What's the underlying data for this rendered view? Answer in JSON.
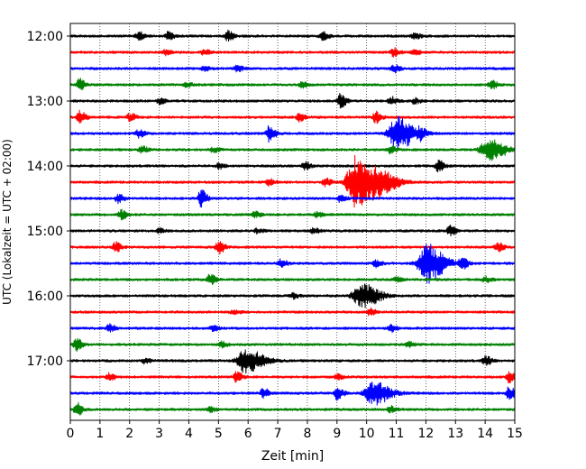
{
  "chart_data": {
    "type": "line",
    "title": "",
    "xlabel": "Zeit  [min]",
    "ylabel": "UTC (Lokalzeit = UTC + 02:00)",
    "xlim": [
      0,
      15
    ],
    "xticks": [
      "0",
      "1",
      "2",
      "3",
      "4",
      "5",
      "6",
      "7",
      "8",
      "9",
      "10",
      "11",
      "12",
      "13",
      "14",
      "15"
    ],
    "yticks": [
      "12:00",
      "13:00",
      "14:00",
      "15:00",
      "16:00",
      "17:00"
    ],
    "grid": "vertical dotted",
    "trace_interval_minutes": 15,
    "start_time": "12:00",
    "color_cycle": [
      "#000000",
      "#ff0000",
      "#0000ff",
      "#008000"
    ],
    "series": [
      {
        "time": "12:00",
        "color": "#000000",
        "events": [
          [
            2.3,
            0.5
          ],
          [
            3.3,
            0.5
          ],
          [
            5.3,
            0.6
          ],
          [
            8.5,
            0.5
          ],
          [
            11.6,
            0.4
          ]
        ]
      },
      {
        "time": "12:15",
        "color": "#ff0000",
        "events": [
          [
            3.2,
            0.3
          ],
          [
            4.5,
            0.3
          ],
          [
            10.9,
            0.5
          ],
          [
            11.6,
            0.3
          ]
        ]
      },
      {
        "time": "12:30",
        "color": "#0000ff",
        "events": [
          [
            4.5,
            0.3
          ],
          [
            5.6,
            0.4
          ],
          [
            10.9,
            0.5
          ]
        ]
      },
      {
        "time": "12:45",
        "color": "#008000",
        "events": [
          [
            0.3,
            0.7
          ],
          [
            3.9,
            0.3
          ],
          [
            7.8,
            0.3
          ],
          [
            14.2,
            0.5
          ]
        ]
      },
      {
        "time": "13:00",
        "color": "#000000",
        "events": [
          [
            3.0,
            0.3
          ],
          [
            9.1,
            0.9
          ],
          [
            10.8,
            0.5
          ],
          [
            11.6,
            0.3
          ]
        ]
      },
      {
        "time": "13:15",
        "color": "#ff0000",
        "events": [
          [
            0.3,
            0.8
          ],
          [
            2.0,
            0.5
          ],
          [
            7.7,
            0.5
          ],
          [
            10.3,
            0.7
          ]
        ]
      },
      {
        "time": "13:30",
        "color": "#0000ff",
        "events": [
          [
            2.3,
            0.5
          ],
          [
            6.7,
            1.1
          ],
          [
            11.0,
            2.0
          ],
          [
            11.8,
            0.5
          ]
        ]
      },
      {
        "time": "13:45",
        "color": "#008000",
        "events": [
          [
            2.4,
            0.4
          ],
          [
            4.8,
            0.3
          ],
          [
            10.8,
            0.4
          ],
          [
            14.1,
            1.3
          ]
        ]
      },
      {
        "time": "14:00",
        "color": "#000000",
        "events": [
          [
            5.0,
            0.3
          ],
          [
            7.9,
            0.5
          ],
          [
            12.4,
            0.7
          ]
        ]
      },
      {
        "time": "14:15",
        "color": "#ff0000",
        "events": [
          [
            6.7,
            0.4
          ],
          [
            8.6,
            0.5
          ],
          [
            9.6,
            3.2
          ],
          [
            10.4,
            1.4
          ]
        ]
      },
      {
        "time": "14:30",
        "color": "#0000ff",
        "events": [
          [
            1.6,
            0.5
          ],
          [
            4.4,
            1.1
          ],
          [
            9.1,
            0.4
          ]
        ]
      },
      {
        "time": "14:45",
        "color": "#008000",
        "events": [
          [
            1.7,
            0.6
          ],
          [
            6.2,
            0.4
          ],
          [
            8.3,
            0.3
          ]
        ]
      },
      {
        "time": "15:00",
        "color": "#000000",
        "events": [
          [
            3.0,
            0.3
          ],
          [
            6.3,
            0.3
          ],
          [
            8.2,
            0.3
          ],
          [
            12.8,
            0.6
          ]
        ]
      },
      {
        "time": "15:15",
        "color": "#ff0000",
        "events": [
          [
            1.5,
            0.6
          ],
          [
            5.0,
            0.8
          ],
          [
            14.4,
            0.6
          ]
        ]
      },
      {
        "time": "15:30",
        "color": "#0000ff",
        "events": [
          [
            7.1,
            0.5
          ],
          [
            10.3,
            0.4
          ],
          [
            12.0,
            2.4
          ],
          [
            13.2,
            0.7
          ]
        ]
      },
      {
        "time": "15:45",
        "color": "#008000",
        "events": [
          [
            4.7,
            0.6
          ],
          [
            11.0,
            0.3
          ],
          [
            14.0,
            0.3
          ]
        ]
      },
      {
        "time": "16:00",
        "color": "#000000",
        "events": [
          [
            7.5,
            0.3
          ],
          [
            9.8,
            1.5
          ]
        ]
      },
      {
        "time": "16:15",
        "color": "#ff0000",
        "events": [
          [
            5.5,
            0.3
          ],
          [
            10.1,
            0.4
          ]
        ]
      },
      {
        "time": "16:30",
        "color": "#0000ff",
        "events": [
          [
            1.3,
            0.5
          ],
          [
            4.8,
            0.3
          ],
          [
            10.8,
            0.5
          ]
        ]
      },
      {
        "time": "16:45",
        "color": "#008000",
        "events": [
          [
            0.2,
            0.7
          ],
          [
            5.1,
            0.3
          ],
          [
            11.4,
            0.3
          ]
        ]
      },
      {
        "time": "17:00",
        "color": "#000000",
        "events": [
          [
            2.5,
            0.3
          ],
          [
            5.9,
            1.5
          ],
          [
            14.0,
            0.6
          ]
        ]
      },
      {
        "time": "17:15",
        "color": "#ff0000",
        "events": [
          [
            1.3,
            0.4
          ],
          [
            5.6,
            0.6
          ],
          [
            9.0,
            0.3
          ],
          [
            14.8,
            0.6
          ]
        ]
      },
      {
        "time": "17:30",
        "color": "#0000ff",
        "events": [
          [
            6.5,
            0.6
          ],
          [
            9.0,
            0.8
          ],
          [
            10.2,
            1.4
          ],
          [
            14.8,
            0.8
          ]
        ]
      },
      {
        "time": "17:45",
        "color": "#008000",
        "events": [
          [
            0.2,
            0.8
          ],
          [
            4.7,
            0.3
          ],
          [
            10.8,
            0.4
          ]
        ]
      }
    ]
  }
}
